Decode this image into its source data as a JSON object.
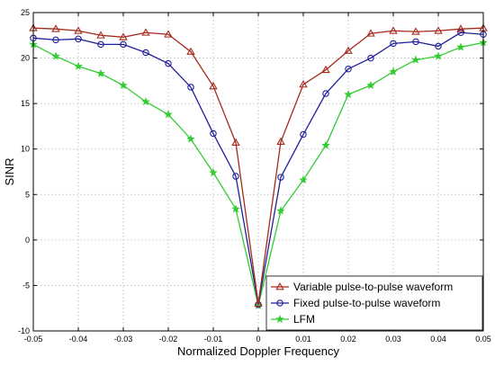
{
  "chart_data": {
    "type": "line",
    "title": "",
    "xlabel": "Normalized Doppler Frequency",
    "ylabel": "SINR",
    "xlim": [
      -0.05,
      0.05
    ],
    "ylim": [
      -10,
      25
    ],
    "x_ticks": [
      "-0.05",
      "-0.04",
      "-0.03",
      "-0.02",
      "-0.01",
      "0",
      "0.01",
      "0.02",
      "0.03",
      "0.04",
      "0.05"
    ],
    "y_ticks": [
      "-10",
      "-5",
      "0",
      "5",
      "10",
      "15",
      "20",
      "25"
    ],
    "grid": true,
    "legend_position": "bottom-right",
    "x": [
      -0.05,
      -0.045,
      -0.04,
      -0.035,
      -0.03,
      -0.025,
      -0.02,
      -0.015,
      -0.01,
      -0.005,
      0,
      0.005,
      0.01,
      0.015,
      0.02,
      0.025,
      0.03,
      0.035,
      0.04,
      0.045,
      0.05
    ],
    "series": [
      {
        "name": "Variable pulse-to-pulse waveform",
        "color": "#a52a1e",
        "marker": "triangle",
        "values": [
          23.3,
          23.2,
          23.0,
          22.5,
          22.3,
          22.8,
          22.6,
          20.7,
          16.9,
          10.7,
          -7.0,
          10.8,
          17.1,
          18.7,
          20.8,
          22.7,
          23.0,
          22.9,
          23.0,
          23.2,
          23.3
        ]
      },
      {
        "name": "Fixed pulse-to-pulse waveform",
        "color": "#1f1f99",
        "marker": "circle",
        "values": [
          22.2,
          22.0,
          22.1,
          21.5,
          21.5,
          20.6,
          19.4,
          16.8,
          11.7,
          7.0,
          -7.1,
          6.9,
          11.6,
          16.1,
          18.8,
          20.0,
          21.6,
          21.8,
          21.3,
          22.8,
          22.6
        ]
      },
      {
        "name": "LFM",
        "color": "#33cc33",
        "marker": "star",
        "values": [
          21.5,
          20.2,
          19.1,
          18.3,
          17.0,
          15.2,
          13.8,
          11.1,
          7.4,
          3.4,
          -7.2,
          3.2,
          6.6,
          10.4,
          16.0,
          17.0,
          18.5,
          19.8,
          20.2,
          21.2,
          21.7
        ]
      }
    ]
  }
}
